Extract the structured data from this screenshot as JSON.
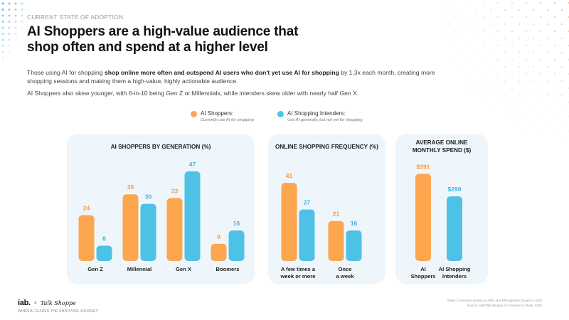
{
  "eyebrow": "CURRENT STATE OF ADOPTION",
  "headline": {
    "line1": "AI Shoppers are a high-value audience that",
    "line2": "shop often and spend at a higher level"
  },
  "body": {
    "p1_pre": "Those using AI for shopping ",
    "p1_bold": "shop online more often and outspend AI users who don't yet use AI for shopping",
    "p1_post": " by 1.3x each month, creating more shopping sessions and making them a high-value, highly actionable audience.",
    "p2": "AI Shoppers also skew younger, with 6-in-10 being Gen Z or Millennials, while intenders skew older with nearly half Gen X."
  },
  "colors": {
    "ai_shoppers": "#fca650",
    "ai_intenders": "#4dc2e6",
    "ai_shoppers_label": "#f59a3d",
    "ai_intenders_label": "#3bb3dd",
    "panel_bg": "#eef6fb"
  },
  "legend": [
    {
      "title": "AI Shoppers:",
      "subtitle": "Currently use AI for shopping"
    },
    {
      "title": "AI Shopping Intenders:",
      "subtitle": "Use AI generally, but not yet for shopping"
    }
  ],
  "chart_data": [
    {
      "type": "bar",
      "title": "AI SHOPPERS BY GENERATION (%)",
      "categories": [
        "Gen Z",
        "Millennial",
        "Gen X",
        "Boomers"
      ],
      "series": [
        {
          "name": "AI Shoppers",
          "values": [
            24,
            35,
            33,
            9
          ],
          "labels": [
            "24",
            "35",
            "33",
            "9"
          ]
        },
        {
          "name": "AI Shopping Intenders",
          "values": [
            8,
            30,
            47,
            16
          ],
          "labels": [
            "8",
            "30",
            "47",
            "16"
          ]
        }
      ],
      "ylim": [
        0,
        50
      ]
    },
    {
      "type": "bar",
      "title": "ONLINE SHOPPING FREQUENCY (%)",
      "categories": [
        [
          "A few times a",
          "week or more"
        ],
        [
          "Once",
          "a week"
        ]
      ],
      "series": [
        {
          "name": "AI Shoppers",
          "values": [
            41,
            21
          ],
          "labels": [
            "41",
            "21"
          ]
        },
        {
          "name": "AI Shopping Intenders",
          "values": [
            27,
            16
          ],
          "labels": [
            "27",
            "16"
          ]
        }
      ],
      "ylim": [
        0,
        50
      ]
    },
    {
      "type": "bar",
      "title": [
        "AVERAGE ONLINE",
        "MONTHLY SPEND ($)"
      ],
      "categories": [
        [
          "AI",
          "Shoppers"
        ],
        [
          "AI Shopping",
          "Intenders"
        ]
      ],
      "values": [
        391,
        290
      ],
      "labels": [
        "$391",
        "$290"
      ],
      "ylim": [
        0,
        450
      ]
    }
  ],
  "brand": {
    "iab": "iab.",
    "x": "×",
    "partner": "Talk Shoppe",
    "tagline": "WHEN AI GUIDES THE SHOPPING JOURNEY"
  },
  "source": {
    "line1": "Base: Consumer survey (n=600) and Ethnographic Dyad (n=100)",
    "line2": "Source: IAB/Talk Shoppe AI Commerce Study, 2025"
  }
}
